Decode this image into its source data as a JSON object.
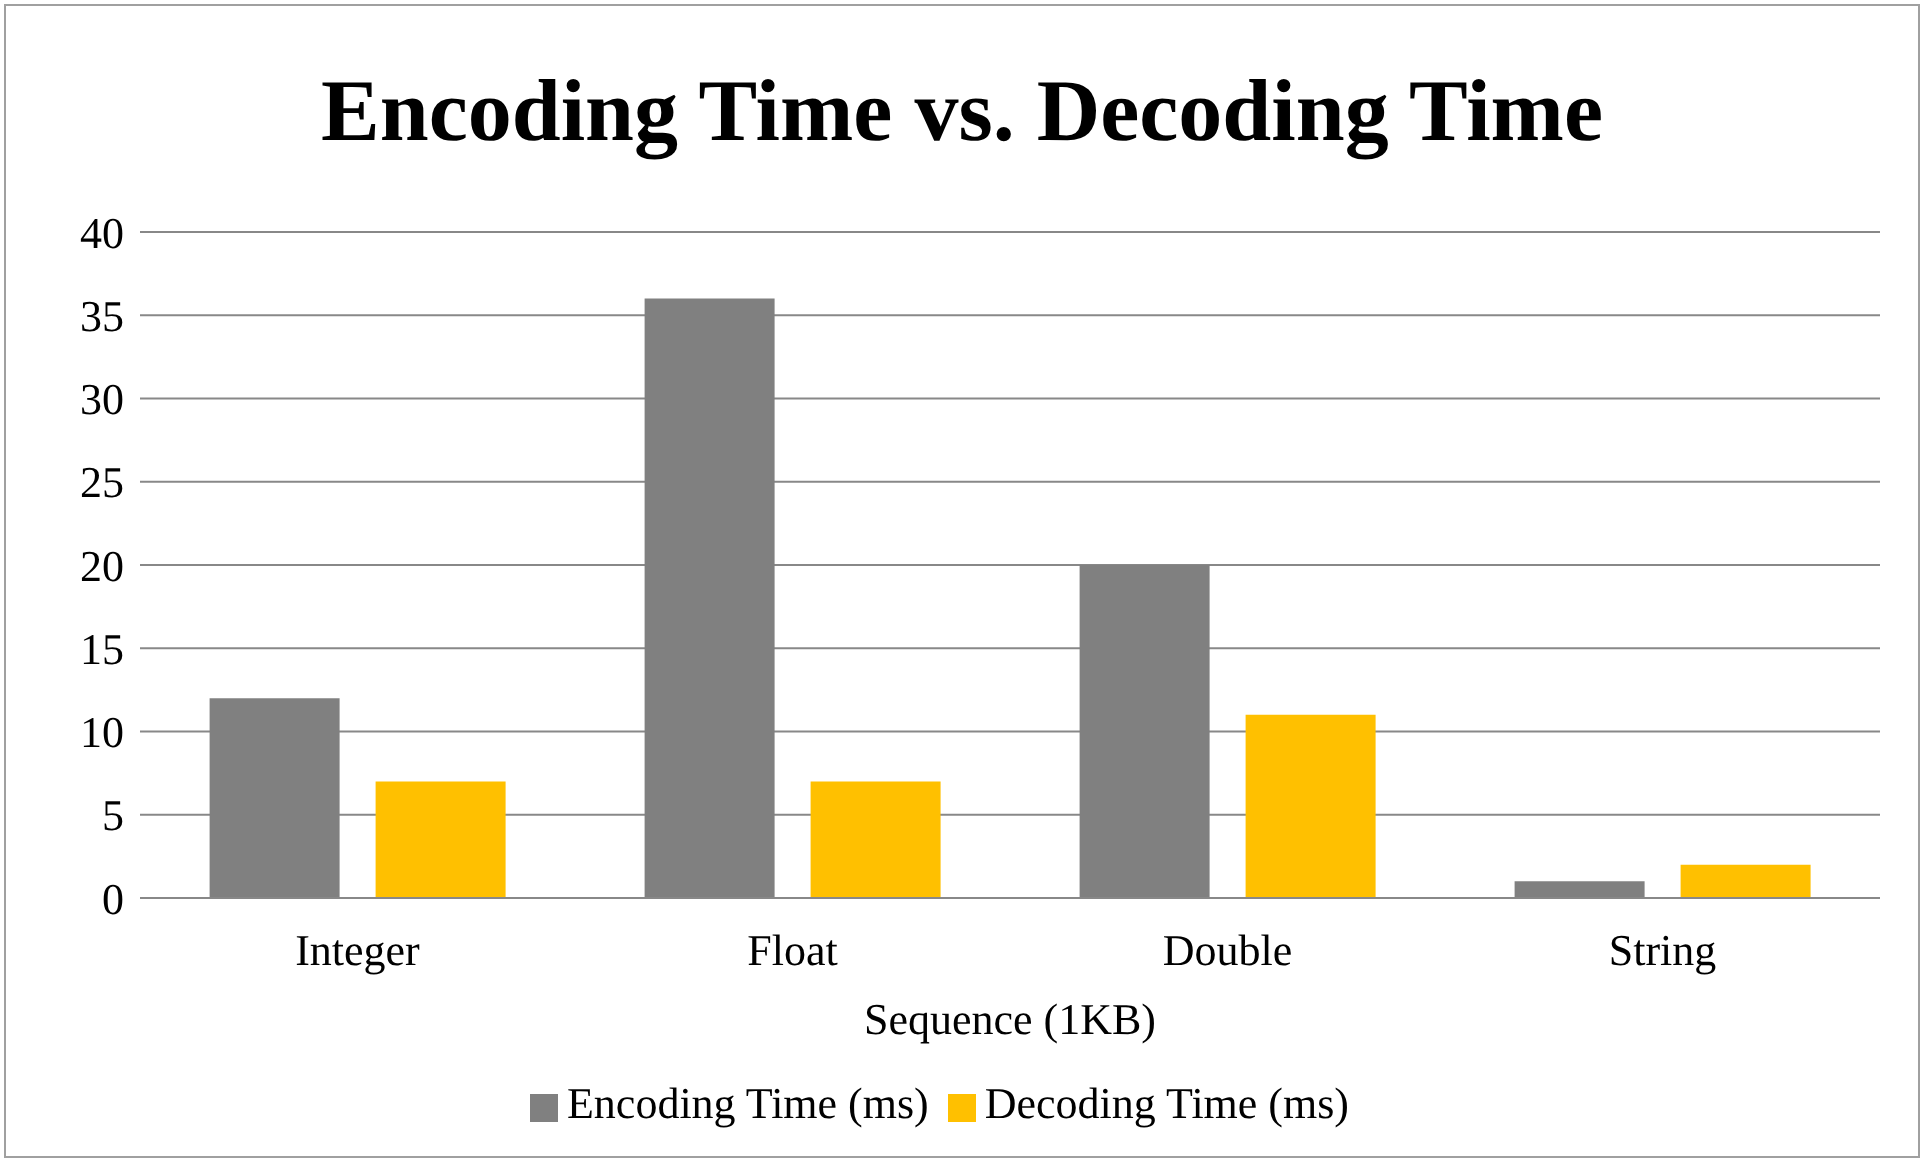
{
  "chart_data": {
    "type": "bar",
    "title": "Encoding Time vs. Decoding Time",
    "xlabel": "Sequence (1KB)",
    "categories": [
      "Integer",
      "Float",
      "Double",
      "String"
    ],
    "series": [
      {
        "name": "Encoding Time (ms)",
        "color": "#808080",
        "values": [
          12,
          36,
          20,
          1
        ]
      },
      {
        "name": "Decoding Time (ms)",
        "color": "#ffc000",
        "values": [
          7,
          7,
          11,
          2
        ]
      }
    ],
    "ylim": [
      0,
      40
    ],
    "yticks": [
      0,
      5,
      10,
      15,
      20,
      25,
      30,
      35,
      40
    ],
    "grid": "y",
    "legend": "bottom"
  }
}
